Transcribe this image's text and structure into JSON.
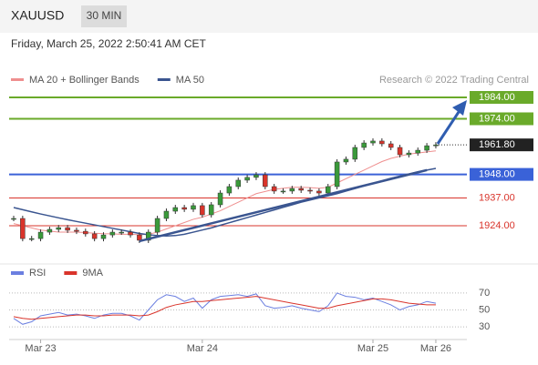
{
  "header": {
    "symbol": "XAUUSD",
    "interval": "30 MIN"
  },
  "timestamp": "Friday, March 25, 2022 2:50:41 AM CET",
  "chart_data": [
    {
      "type": "candlestick",
      "credit": "Research © 2022 Trading Central",
      "categories": [
        null,
        null,
        null,
        "Mar 23",
        null,
        null,
        null,
        null,
        null,
        null,
        null,
        null,
        null,
        null,
        null,
        null,
        null,
        null,
        null,
        null,
        null,
        "Mar 24",
        null,
        null,
        null,
        null,
        null,
        null,
        null,
        null,
        null,
        null,
        null,
        null,
        null,
        null,
        null,
        null,
        null,
        null,
        "Mar 25",
        null,
        null,
        null,
        null,
        null,
        null,
        "Mar 26"
      ],
      "close": [
        1927.4,
        1918.0,
        1918.0,
        1921.0,
        1922.3,
        1923.1,
        1921.9,
        1921.4,
        1920.2,
        1918.0,
        1919.7,
        1921.0,
        1921.0,
        1919.7,
        1917.2,
        1921.0,
        1927.4,
        1930.8,
        1932.5,
        1931.7,
        1933.4,
        1929.1,
        1933.8,
        1939.3,
        1942.3,
        1945.3,
        1946.6,
        1947.8,
        1942.3,
        1940.2,
        1940.2,
        1941.4,
        1940.6,
        1940.2,
        1939.3,
        1942.3,
        1953.8,
        1955.1,
        1960.6,
        1962.7,
        1963.6,
        1962.3,
        1960.6,
        1957.2,
        1958.0,
        1959.3,
        1961.4,
        1961.8
      ],
      "up_color": "#3a9a3a",
      "down_color": "#d9342b",
      "series": [
        {
          "name": "MA 20 + Bollinger Bands",
          "color": "#ef8f8f",
          "values": [
            1925,
            1924,
            1923,
            1922,
            1921.5,
            1921,
            1921,
            1921,
            1920.8,
            1920.5,
            1920.3,
            1920.2,
            1920,
            1920,
            1919.8,
            1920,
            1921,
            1922.5,
            1924,
            1925.5,
            1927,
            1928,
            1929.5,
            1931,
            1933,
            1935,
            1937,
            1939,
            1940,
            1941,
            1941.5,
            1942,
            1942,
            1941.8,
            1941.5,
            1942,
            1944,
            1946,
            1948,
            1950,
            1952,
            1954,
            1955.5,
            1956.5,
            1957.5,
            1958,
            1958.5,
            1959
          ]
        },
        {
          "name": "MA 50",
          "color": "#3a5590",
          "values": [
            1932.5,
            1931.5,
            1930.5,
            1929.5,
            1928.6,
            1927.7,
            1926.8,
            1926,
            1925.2,
            1924.4,
            1923.6,
            1922.8,
            1922,
            1921.2,
            1920.4,
            1919.8,
            1919.4,
            1919.2,
            1919.4,
            1920,
            1921,
            1922,
            1923,
            1924.2,
            1925.4,
            1926.6,
            1927.8,
            1929,
            1930.2,
            1931.4,
            1932.6,
            1933.8,
            1935,
            1936,
            1937,
            1938,
            1939,
            1940.2,
            1941.4,
            1942.6,
            1943.8,
            1945,
            1946.2,
            1947.2,
            1948.2,
            1949.2,
            1950,
            1950.8
          ]
        }
      ],
      "trendline": {
        "x": [
          14,
          46
        ],
        "values": [
          1916.8,
          1950.0
        ],
        "color": "#3a5590"
      },
      "levels": [
        {
          "value": 1984,
          "label": "1984.00",
          "color": "#6aaa2a",
          "style": "box"
        },
        {
          "value": 1974,
          "label": "1974.00",
          "color": "#6aaa2a",
          "style": "box"
        },
        {
          "value": 1961.8,
          "label": "1961.80",
          "color": "#222222",
          "style": "current"
        },
        {
          "value": 1948,
          "label": "1948.00",
          "color": "#3a62d8",
          "style": "box"
        },
        {
          "value": 1937,
          "label": "1937.00",
          "color": "#d9342b",
          "style": "text"
        },
        {
          "value": 1924,
          "label": "1924.00",
          "color": "#d9342b",
          "style": "text"
        }
      ],
      "ylim": [
        1908,
        1989
      ]
    },
    {
      "type": "line",
      "series": [
        {
          "name": "RSI",
          "color": "#6b7fe0",
          "values": [
            40,
            33,
            36,
            43,
            45,
            47,
            44,
            45,
            43,
            40,
            44,
            46,
            46,
            43,
            38,
            50,
            62,
            68,
            66,
            60,
            64,
            52,
            62,
            66,
            67,
            68,
            66,
            69,
            55,
            52,
            53,
            55,
            52,
            50,
            48,
            55,
            70,
            66,
            65,
            62,
            64,
            60,
            56,
            50,
            54,
            56,
            60,
            58
          ]
        },
        {
          "name": "9MA",
          "color": "#d9342b",
          "values": [
            42,
            40,
            39,
            40,
            41,
            42,
            43,
            44,
            44,
            43,
            43,
            44,
            44,
            44,
            43,
            44,
            48,
            53,
            56,
            58,
            60,
            60,
            61,
            62,
            63,
            64,
            65,
            66,
            64,
            62,
            60,
            58,
            56,
            54,
            52,
            52,
            55,
            57,
            59,
            61,
            63,
            63,
            62,
            60,
            58,
            57,
            56,
            56
          ]
        }
      ],
      "ylim": [
        15,
        85
      ],
      "yticks": [
        70,
        50,
        30
      ]
    }
  ]
}
